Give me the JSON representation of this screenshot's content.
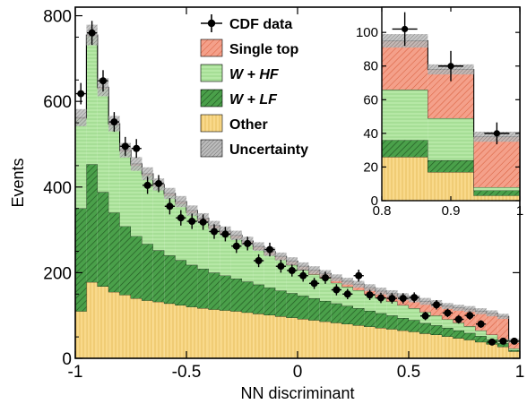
{
  "chart_data": [
    {
      "type": "histogram",
      "title": "",
      "xlabel": "NN discriminant",
      "ylabel": "Events",
      "xlim": [
        -1,
        1
      ],
      "ylim": [
        0,
        820
      ],
      "xticks": [
        "-1",
        "-0.5",
        "0",
        "0.5",
        "1"
      ],
      "yticks": [
        "0",
        "200",
        "400",
        "600",
        "800"
      ],
      "bin_edges": [
        -1,
        -0.95,
        -0.9,
        -0.85,
        -0.8,
        -0.75,
        -0.7,
        -0.65,
        -0.6,
        -0.55,
        -0.5,
        -0.45,
        -0.4,
        -0.35,
        -0.3,
        -0.25,
        -0.2,
        -0.15,
        -0.1,
        -0.05,
        0,
        0.05,
        0.1,
        0.15,
        0.2,
        0.25,
        0.3,
        0.35,
        0.4,
        0.45,
        0.5,
        0.55,
        0.6,
        0.65,
        0.7,
        0.75,
        0.8,
        0.85,
        0.9,
        0.95,
        1
      ],
      "stacked_series": [
        {
          "name": "Other",
          "color": "#f9d98a",
          "hatch": "vertical",
          "values": [
            110,
            178,
            168,
            155,
            148,
            140,
            135,
            132,
            128,
            124,
            120,
            117,
            114,
            112,
            110,
            107,
            104,
            101,
            98,
            95,
            92,
            89,
            86,
            83,
            80,
            77,
            74,
            71,
            68,
            65,
            62,
            58,
            55,
            51,
            47,
            43,
            38,
            33,
            27,
            16
          ]
        },
        {
          "name": "W + LF",
          "color": "#4aa04a",
          "hatch": "diagonal",
          "values": [
            240,
            275,
            220,
            185,
            160,
            145,
            132,
            120,
            112,
            105,
            98,
            92,
            86,
            81,
            76,
            72,
            68,
            64,
            60,
            57,
            54,
            51,
            48,
            45,
            42,
            40,
            37,
            34,
            32,
            29,
            27,
            24,
            22,
            20,
            18,
            16,
            14,
            11,
            8,
            3
          ]
        },
        {
          "name": "W + HF",
          "color": "#b6e8a6",
          "hatch": "horizontal",
          "values": [
            210,
            300,
            242,
            205,
            175,
            165,
            160,
            150,
            140,
            132,
            122,
            112,
            104,
            98,
            94,
            88,
            82,
            76,
            72,
            66,
            60,
            56,
            53,
            48,
            45,
            42,
            39,
            36,
            33,
            30,
            28,
            26,
            23,
            20,
            18,
            16,
            13,
            11,
            9,
            4
          ]
        },
        {
          "name": "Single top",
          "color": "#f4a08a",
          "hatch": "diagonal",
          "values": [
            2,
            2,
            3,
            3,
            3,
            4,
            4,
            4,
            5,
            5,
            5,
            6,
            6,
            6,
            7,
            7,
            7,
            8,
            8,
            9,
            9,
            10,
            11,
            12,
            13,
            14,
            15,
            16,
            18,
            20,
            22,
            25,
            28,
            31,
            35,
            40,
            45,
            50,
            54,
            18
          ]
        }
      ],
      "uncertainty": {
        "name": "Uncertainty",
        "color": "#a8a8a8",
        "values": [
          20,
          24,
          21,
          18,
          17,
          16,
          15,
          14,
          13,
          13,
          12,
          12,
          11,
          11,
          11,
          10,
          10,
          10,
          9,
          9,
          9,
          9,
          8,
          8,
          8,
          8,
          8,
          8,
          8,
          8,
          8,
          8,
          8,
          7,
          7,
          7,
          7,
          7,
          6,
          5
        ]
      },
      "data_points": {
        "name": "CDF data",
        "x": [
          -0.975,
          -0.925,
          -0.875,
          -0.825,
          -0.775,
          -0.725,
          -0.675,
          -0.625,
          -0.575,
          -0.525,
          -0.475,
          -0.425,
          -0.375,
          -0.325,
          -0.275,
          -0.225,
          -0.175,
          -0.125,
          -0.075,
          -0.025,
          0.025,
          0.075,
          0.125,
          0.175,
          0.225,
          0.275,
          0.325,
          0.375,
          0.425,
          0.475,
          0.525,
          0.575,
          0.625,
          0.675,
          0.725,
          0.775,
          0.825,
          0.875,
          0.925,
          0.975
        ],
        "y": [
          618,
          760,
          648,
          552,
          495,
          490,
          404,
          408,
          355,
          328,
          320,
          318,
          296,
          290,
          262,
          268,
          228,
          254,
          215,
          205,
          193,
          175,
          188,
          160,
          150,
          193,
          148,
          141,
          140,
          140,
          142,
          99,
          125,
          106,
          91,
          100,
          80,
          38,
          40,
          40
        ],
        "err": [
          25,
          28,
          25,
          23,
          22,
          22,
          20,
          20,
          19,
          18,
          18,
          18,
          17,
          17,
          16,
          16,
          15,
          16,
          15,
          14,
          14,
          13,
          14,
          13,
          12,
          14,
          12,
          12,
          12,
          12,
          12,
          10,
          11,
          10,
          10,
          10,
          9,
          6,
          6,
          6
        ]
      },
      "legend": {
        "placement": "top-center",
        "entries": [
          "CDF data",
          "Single top",
          "W + HF",
          "W + LF",
          "Other",
          "Uncertainty"
        ]
      }
    },
    {
      "type": "histogram",
      "title": "",
      "xlabel": "",
      "ylabel": "",
      "placement": "inset top-right",
      "xlim": [
        0.8,
        1.0
      ],
      "ylim": [
        0,
        115
      ],
      "xticks": [
        "0.8",
        "0.9",
        "1"
      ],
      "yticks": [
        "0",
        "20",
        "40",
        "60",
        "80",
        "100"
      ],
      "bin_edges": [
        0.8,
        0.8667,
        0.9333,
        1.0
      ],
      "stacked_series": [
        {
          "name": "Other",
          "color": "#f9d98a",
          "values": [
            26,
            17,
            3
          ]
        },
        {
          "name": "W + LF",
          "color": "#4aa04a",
          "values": [
            10,
            7,
            3
          ]
        },
        {
          "name": "W + HF",
          "color": "#b6e8a6",
          "values": [
            30,
            25,
            2
          ]
        },
        {
          "name": "Single top",
          "color": "#f4a08a",
          "values": [
            29,
            29,
            30
          ]
        }
      ],
      "uncertainty": {
        "name": "Uncertainty",
        "color": "#a8a8a8",
        "values": [
          4,
          3,
          3
        ]
      },
      "data_points": {
        "name": "CDF data",
        "x": [
          0.8333,
          0.9,
          0.9667
        ],
        "y": [
          102,
          80,
          40
        ],
        "err": [
          10,
          9,
          6.5
        ]
      }
    }
  ]
}
